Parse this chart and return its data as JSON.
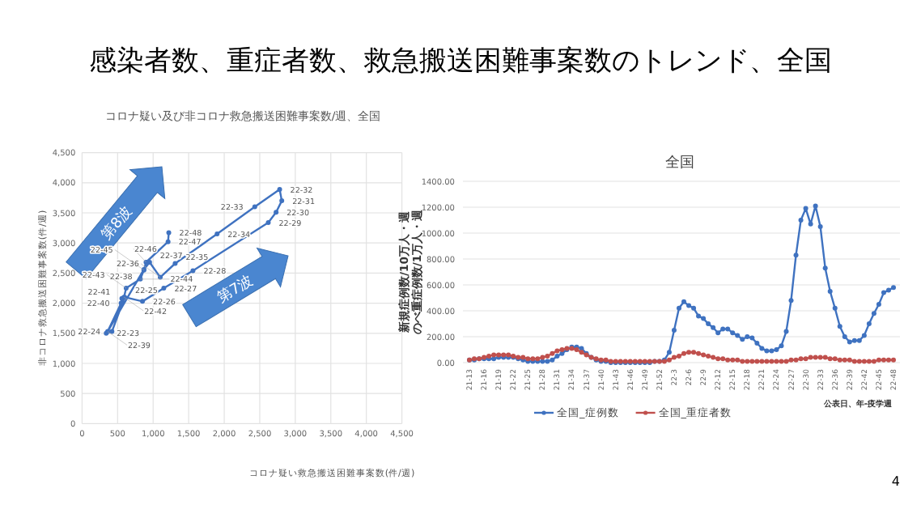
{
  "chart_data": [
    {
      "type": "line",
      "title": "感染者数、重症者数、救急搬送困難事案数のトレンド、全国",
      "subtitle": "コロナ疑い及び非コロナ救急搬送困難事案数/週、全国",
      "xlabel": "コロナ疑い救急搬送困難事案数(件/週)",
      "ylabel": "非コロナ救急搬送困難事案数(件/週)",
      "xlim": [
        0,
        4500
      ],
      "ylim": [
        0,
        4500
      ],
      "xticks": [
        {
          "value": 0,
          "label": "0"
        },
        {
          "value": 500,
          "label": "500"
        },
        {
          "value": 1000,
          "label": "1,000"
        },
        {
          "value": 1500,
          "label": "1,500"
        },
        {
          "value": 2000,
          "label": "2,000"
        },
        {
          "value": 2500,
          "label": "2,500"
        },
        {
          "value": 3000,
          "label": "3,000"
        },
        {
          "value": 3500,
          "label": "3,500"
        },
        {
          "value": 4000,
          "label": "4,000"
        },
        {
          "value": 4500,
          "label": "4,500"
        }
      ],
      "yticks": [
        {
          "value": 0,
          "label": "0"
        },
        {
          "value": 500,
          "label": "500"
        },
        {
          "value": 1000,
          "label": "1,000"
        },
        {
          "value": 1500,
          "label": "1,500"
        },
        {
          "value": 2000,
          "label": "2,000"
        },
        {
          "value": 2500,
          "label": "2,500"
        },
        {
          "value": 3000,
          "label": "3,000"
        },
        {
          "value": 3500,
          "label": "3,500"
        },
        {
          "value": 4000,
          "label": "4,000"
        },
        {
          "value": 4500,
          "label": "4,500"
        }
      ],
      "grid": true,
      "marker": "circle",
      "series": [
        {
          "color": "#3f72c0",
          "x": [
            340,
            420,
            600,
            850,
            1150,
            1560,
            2620,
            2730,
            2810,
            2780,
            2430,
            1900,
            1310,
            1100,
            950,
            870,
            360,
            550,
            560,
            590,
            620,
            820,
            870,
            900,
            1210,
            1220
          ],
          "values": [
            1500,
            1530,
            2100,
            2030,
            2250,
            2540,
            3340,
            3510,
            3700,
            3890,
            3600,
            3150,
            2660,
            2430,
            2680,
            2560,
            1530,
            2000,
            2080,
            2100,
            2250,
            2400,
            2550,
            2680,
            3020,
            3170
          ],
          "value_labels": [
            "22-23",
            "22-24",
            "22-25",
            "22-26",
            "22-27",
            "22-28",
            "22-29",
            "22-30",
            "22-31",
            "22-32",
            "22-33",
            "22-34",
            "22-35",
            "22-36",
            "22-37",
            "22-38",
            "22-39",
            "22-40",
            "22-41",
            "22-42",
            "22-43",
            "22-44",
            "22-45",
            "22-46",
            "22-47",
            "22-48"
          ]
        }
      ],
      "annotations": [
        "第8波",
        "第7波"
      ]
    },
    {
      "type": "line",
      "title": "全国",
      "xlabel": "公表日、年-疫学週",
      "ylabel": "新規症例数/10万人・週のべ重症例数/1万人・週",
      "ylim": [
        0,
        1400
      ],
      "yticks": [
        {
          "value": 0,
          "label": "0.00"
        },
        {
          "value": 200,
          "label": "200.00"
        },
        {
          "value": 400,
          "label": "400.00"
        },
        {
          "value": 600,
          "label": "600.00"
        },
        {
          "value": 800,
          "label": "800.00"
        },
        {
          "value": 1000,
          "label": "1000.00"
        },
        {
          "value": 1200,
          "label": "1200.00"
        },
        {
          "value": 1400,
          "label": "1400.00"
        }
      ],
      "grid": "y",
      "legend": "bottom",
      "marker": "circle",
      "categories": [
        "21-13",
        null,
        null,
        "21-16",
        null,
        null,
        "21-19",
        null,
        null,
        "21-22",
        null,
        null,
        "21-25",
        null,
        null,
        "21-28",
        null,
        null,
        "21-31",
        null,
        null,
        "21-34",
        null,
        null,
        "21-37",
        null,
        null,
        "21-40",
        null,
        null,
        "21-43",
        null,
        null,
        "21-46",
        null,
        null,
        "21-49",
        null,
        null,
        "21-52",
        null,
        null,
        "22-3",
        null,
        null,
        "22-6",
        null,
        null,
        "22-9",
        null,
        null,
        "22-12",
        null,
        null,
        "22-15",
        null,
        null,
        "22-18",
        null,
        null,
        "22-21",
        null,
        null,
        "22-24",
        null,
        null,
        "22-27",
        null,
        null,
        "22-30",
        null,
        null,
        "22-33",
        null,
        null,
        "22-36",
        null,
        null,
        "22-39",
        null,
        null,
        "22-42",
        null,
        null,
        "22-45",
        null,
        null,
        "22-48"
      ],
      "series": [
        {
          "name": "全国_症例数",
          "color": "#3f72c0",
          "values": [
            20,
            20,
            30,
            30,
            30,
            30,
            40,
            40,
            40,
            40,
            30,
            20,
            10,
            10,
            10,
            10,
            10,
            20,
            50,
            70,
            100,
            120,
            120,
            110,
            70,
            40,
            20,
            10,
            10,
            0,
            0,
            0,
            0,
            0,
            0,
            0,
            0,
            0,
            10,
            10,
            20,
            80,
            250,
            420,
            470,
            440,
            420,
            360,
            340,
            300,
            270,
            230,
            260,
            260,
            230,
            210,
            180,
            200,
            190,
            150,
            110,
            90,
            90,
            100,
            130,
            240,
            480,
            830,
            1100,
            1190,
            1070,
            1210,
            1050,
            730,
            550,
            420,
            280,
            200,
            160,
            170,
            170,
            210,
            300,
            380,
            450,
            540,
            560,
            580
          ]
        },
        {
          "name": "全国_重症者数",
          "color": "#c0504d",
          "values": [
            20,
            30,
            30,
            40,
            50,
            60,
            60,
            60,
            60,
            50,
            40,
            40,
            30,
            30,
            30,
            40,
            50,
            70,
            90,
            100,
            110,
            110,
            100,
            80,
            60,
            40,
            30,
            20,
            20,
            10,
            10,
            10,
            10,
            10,
            10,
            10,
            10,
            10,
            10,
            10,
            10,
            20,
            40,
            50,
            70,
            80,
            80,
            70,
            60,
            50,
            40,
            30,
            30,
            20,
            20,
            20,
            10,
            10,
            10,
            10,
            10,
            10,
            10,
            10,
            10,
            10,
            20,
            20,
            30,
            30,
            40,
            40,
            40,
            40,
            30,
            30,
            20,
            20,
            20,
            10,
            10,
            10,
            10,
            10,
            20,
            20,
            20,
            20
          ]
        }
      ],
      "annotations": [
        "4"
      ]
    }
  ]
}
